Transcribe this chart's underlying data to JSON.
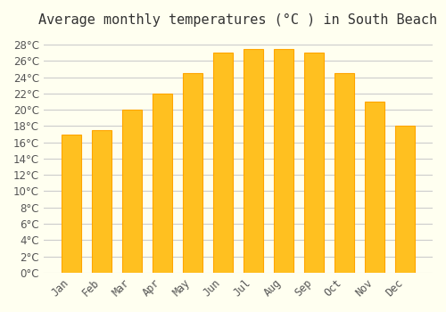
{
  "title": "Average monthly temperatures (°C ) in South Beach",
  "months": [
    "Jan",
    "Feb",
    "Mar",
    "Apr",
    "May",
    "Jun",
    "Jul",
    "Aug",
    "Sep",
    "Oct",
    "Nov",
    "Dec"
  ],
  "values": [
    17.0,
    17.5,
    20.0,
    22.0,
    24.5,
    27.0,
    27.5,
    27.5,
    27.0,
    24.5,
    21.0,
    18.0
  ],
  "bar_color_face": "#FFC020",
  "bar_color_edge": "#FFA500",
  "background_color": "#FFFFF0",
  "grid_color": "#CCCCCC",
  "title_fontsize": 11,
  "tick_fontsize": 8.5,
  "ylim": [
    0,
    29
  ],
  "ytick_step": 2
}
